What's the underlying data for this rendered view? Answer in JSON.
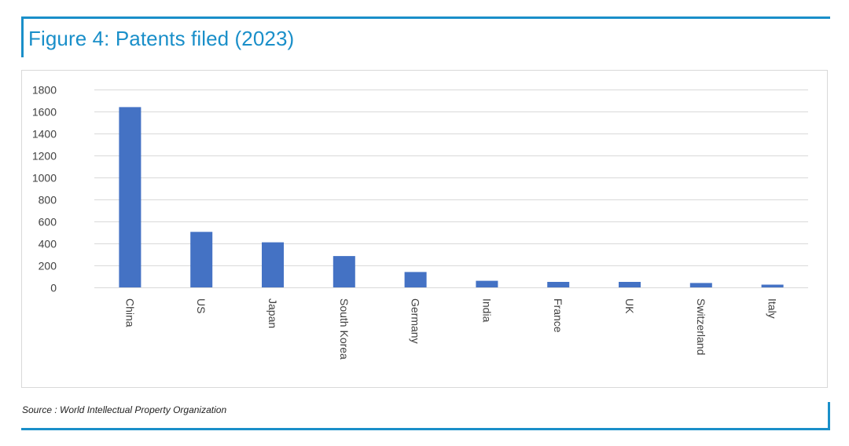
{
  "figure": {
    "title": "Figure 4: Patents filed (2023)",
    "source": "Source : World Intellectual Property Organization"
  },
  "colors": {
    "accent": "#1a8fc9",
    "bar": "#4472c4",
    "gridline": "#d9d9d9",
    "axis_text": "#404040"
  },
  "chart_data": {
    "type": "bar",
    "categories": [
      "China",
      "US",
      "Japan",
      "South Korea",
      "Germany",
      "India",
      "France",
      "UK",
      "Switzerland",
      "Italy"
    ],
    "values": [
      1640,
      505,
      410,
      285,
      140,
      60,
      50,
      50,
      40,
      25
    ],
    "title": "Figure 4: Patents filed (2023)",
    "xlabel": "",
    "ylabel": "",
    "ylim": [
      0,
      1800
    ],
    "yticks": [
      0,
      200,
      400,
      600,
      800,
      1000,
      1200,
      1400,
      1600,
      1800
    ],
    "grid": true,
    "legend": "none",
    "category_label_orientation": "rotated-90-clockwise"
  }
}
